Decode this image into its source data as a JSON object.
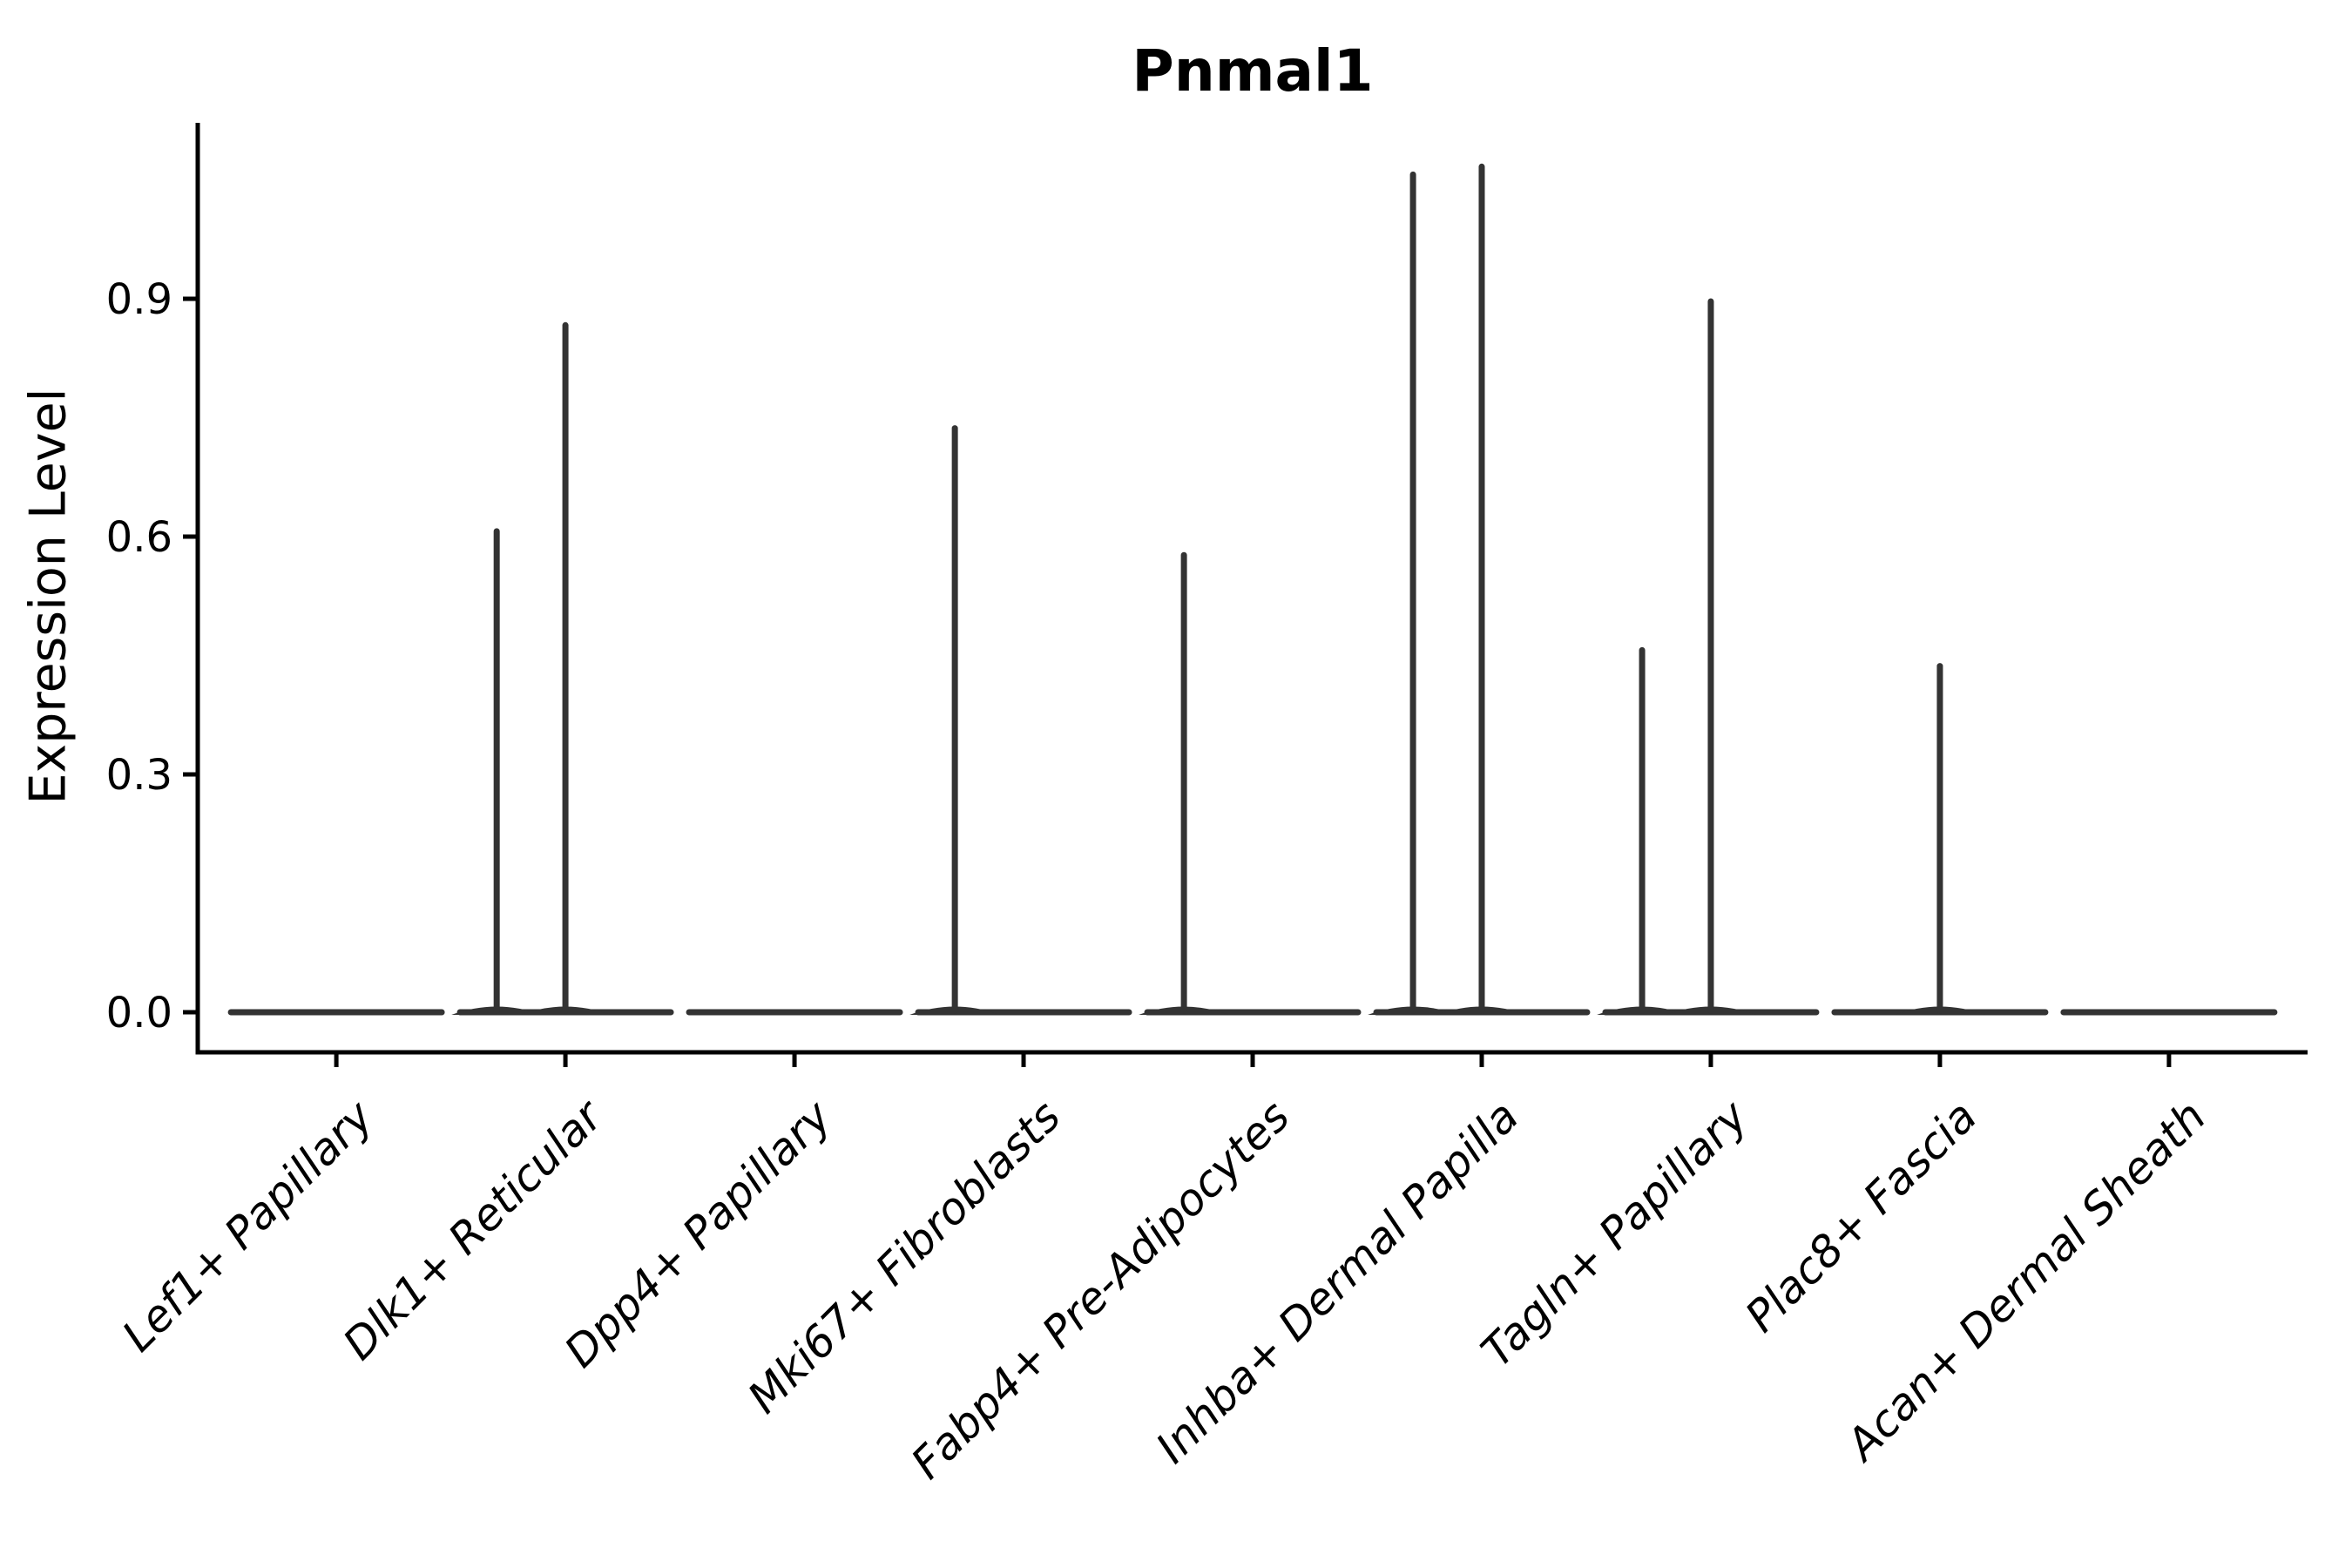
{
  "chart_data": {
    "type": "violin",
    "title": "Pnmal1",
    "ylabel": "Expression Level",
    "xlabel": "",
    "grid": false,
    "legend": false,
    "background_color": "#ffffff",
    "axis_color": "#000000",
    "violin_color": "#333333",
    "ytick_labels": [
      "0.0",
      "0.3",
      "0.6",
      "0.9"
    ],
    "ytick_values": [
      0.0,
      0.3,
      0.6,
      0.9
    ],
    "ylim": [
      -0.05,
      1.12
    ],
    "categories": [
      "Lef1+ Papillary",
      "Dlk1+ Reticular",
      "Dpp4+ Papillary",
      "Mki67+ Fibroblasts",
      "Fabp4+ Pre-Adipocytes",
      "Inhba+ Dermal Papilla",
      "Tagln+ Papillary",
      "Plac8+ Fascia",
      "Acan+ Dermal Sheath"
    ],
    "violins": [
      {
        "category": "Lef1+ Papillary",
        "baseline_value": 0.0,
        "spikes": []
      },
      {
        "category": "Dlk1+ Reticular",
        "baseline_value": 0.0,
        "spikes": [
          {
            "x_offset": -0.3,
            "max_expression": 0.61
          },
          {
            "x_offset": 0.0,
            "max_expression": 0.87
          }
        ]
      },
      {
        "category": "Dpp4+ Papillary",
        "baseline_value": 0.0,
        "spikes": []
      },
      {
        "category": "Mki67+ Fibroblasts",
        "baseline_value": 0.0,
        "spikes": [
          {
            "x_offset": -0.3,
            "max_expression": 0.74
          }
        ]
      },
      {
        "category": "Fabp4+ Pre-Adipocytes",
        "baseline_value": 0.0,
        "spikes": [
          {
            "x_offset": -0.3,
            "max_expression": 0.58
          }
        ]
      },
      {
        "category": "Inhba+ Dermal Papilla",
        "baseline_value": 0.0,
        "spikes": [
          {
            "x_offset": -0.3,
            "max_expression": 1.06
          },
          {
            "x_offset": 0.0,
            "max_expression": 1.07
          }
        ]
      },
      {
        "category": "Tagln+ Papillary",
        "baseline_value": 0.0,
        "spikes": [
          {
            "x_offset": -0.3,
            "max_expression": 0.46
          },
          {
            "x_offset": 0.0,
            "max_expression": 0.9
          }
        ]
      },
      {
        "category": "Plac8+ Fascia",
        "baseline_value": 0.0,
        "spikes": [
          {
            "x_offset": 0.0,
            "max_expression": 0.44
          }
        ]
      },
      {
        "category": "Acan+ Dermal Sheath",
        "baseline_value": 0.0,
        "spikes": []
      }
    ]
  }
}
